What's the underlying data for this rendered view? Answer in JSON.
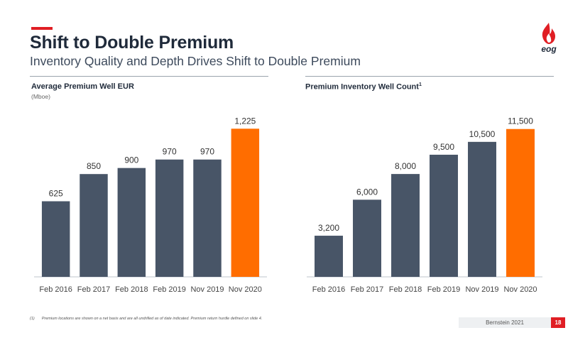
{
  "header": {
    "title": "Shift to Double Premium",
    "subtitle": "Inventory Quality and Depth Drives Shift to Double Premium",
    "logo_text": "eog"
  },
  "colors": {
    "bar": "#485567",
    "highlight": "#ff6d00",
    "accent": "#e01e24"
  },
  "chart_data": [
    {
      "type": "bar",
      "title": "Average Premium Well EUR",
      "unit": "(Mboe)",
      "categories": [
        "Feb 2016",
        "Feb 2017",
        "Feb 2018",
        "Feb 2019",
        "Nov 2019",
        "Nov 2020"
      ],
      "values": [
        625,
        850,
        900,
        970,
        970,
        1225
      ],
      "data_labels": [
        "625",
        "850",
        "900",
        "970",
        "970",
        "1,225"
      ],
      "highlight_index": 5,
      "ylim": [
        0,
        1350
      ]
    },
    {
      "type": "bar",
      "title": "Premium Inventory Well Count",
      "title_sup": "1",
      "categories": [
        "Feb 2016",
        "Feb 2017",
        "Feb 2018",
        "Feb 2019",
        "Nov 2019",
        "Nov 2020"
      ],
      "values": [
        3200,
        6000,
        8000,
        9500,
        10500,
        11500
      ],
      "data_labels": [
        "3,200",
        "6,000",
        "8,000",
        "9,500",
        "10,500",
        "11,500"
      ],
      "highlight_index": 5,
      "ylim": [
        0,
        12700
      ]
    }
  ],
  "footer": {
    "footnote_number": "(1)",
    "footnote_text": "Premium locations are shown on a net basis and are all undrilled as of date indicated. Premium return hurdle defined on slide 4.",
    "source": "Bernstein 2021",
    "page_number": "18"
  }
}
